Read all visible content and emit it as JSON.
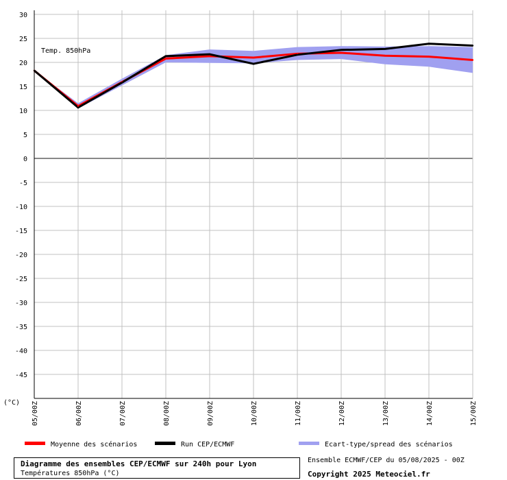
{
  "chart_data": {
    "type": "line",
    "annotation": "Temp. 850hPa",
    "unit_label": "(°C)",
    "x": [
      "05/00Z",
      "06/00Z",
      "07/00Z",
      "08/00Z",
      "09/00Z",
      "10/00Z",
      "11/00Z",
      "12/00Z",
      "13/00Z",
      "14/00Z",
      "15/00Z"
    ],
    "ylim": [
      -50,
      30
    ],
    "yticks": [
      30,
      25,
      20,
      15,
      10,
      5,
      0,
      -5,
      -10,
      -15,
      -20,
      -25,
      -30,
      -35,
      -40,
      -45
    ],
    "grid": true,
    "series": [
      {
        "name": "Moyenne des scénarios",
        "color": "#ff0000",
        "values": [
          18.3,
          10.9,
          15.9,
          20.8,
          21.3,
          21.0,
          21.8,
          22.0,
          21.4,
          21.2,
          20.5
        ]
      },
      {
        "name": "Run CEP/ECMWF",
        "color": "#000000",
        "values": [
          18.3,
          10.6,
          15.8,
          21.3,
          21.7,
          19.7,
          21.6,
          22.6,
          22.8,
          23.9,
          23.5
        ]
      }
    ],
    "band": {
      "name": "Ecart-type/spread des scénarios",
      "color": "#a0a0f0",
      "lower": [
        18.3,
        10.4,
        15.2,
        20.0,
        19.9,
        19.8,
        20.5,
        20.7,
        19.6,
        19.1,
        17.8
      ],
      "upper": [
        18.3,
        11.5,
        16.6,
        21.5,
        22.7,
        22.4,
        23.2,
        23.4,
        23.3,
        23.4,
        23.2
      ]
    }
  },
  "legend": [
    {
      "label": "Moyenne des scénarios",
      "color": "#ff0000"
    },
    {
      "label": "Run CEP/ECMWF",
      "color": "#000000"
    },
    {
      "label": "Ecart-type/spread des scénarios",
      "color": "#a0a0f0"
    }
  ],
  "footer": {
    "title": "Diagramme des ensembles CEP/ECMWF sur 240h pour Lyon",
    "subtitle": "Températures 850hPa (°C)",
    "run_info": "Ensemble ECMWF/CEP du 05/08/2025 - 00Z",
    "copyright": "Copyright 2025 Meteociel.fr"
  }
}
